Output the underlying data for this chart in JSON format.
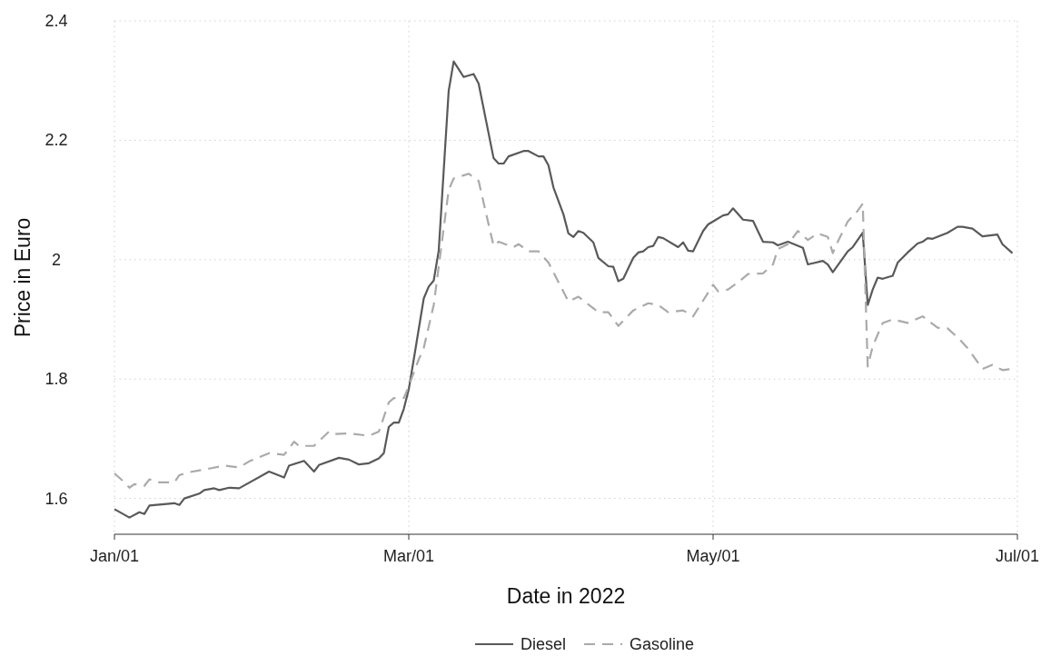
{
  "chart_data": {
    "type": "line",
    "xlabel": "Date in 2022",
    "ylabel": "Price in Euro",
    "xlim": [
      "2022-01-01",
      "2022-07-01"
    ],
    "xticks": [
      {
        "value": "2022-01-01",
        "label": "Jan/01"
      },
      {
        "value": "2022-03-01",
        "label": "Mar/01"
      },
      {
        "value": "2022-05-01",
        "label": "May/01"
      },
      {
        "value": "2022-07-01",
        "label": "Jul/01"
      }
    ],
    "ylim": [
      1.54,
      2.4
    ],
    "yticks": [
      1.6,
      1.8,
      {
        "value": 2,
        "label": "2"
      },
      2.2,
      2.4
    ],
    "grid": true,
    "legend": "bottom",
    "series": [
      {
        "name": "Diesel",
        "color": "#595959",
        "line_style": "solid",
        "x": [
          "2022-01-01",
          "2022-01-04",
          "2022-01-06",
          "2022-01-07",
          "2022-01-08",
          "2022-01-13",
          "2022-01-14",
          "2022-01-15",
          "2022-01-18",
          "2022-01-19",
          "2022-01-21",
          "2022-01-22",
          "2022-01-24",
          "2022-01-26",
          "2022-02-01",
          "2022-02-04",
          "2022-02-05",
          "2022-02-08",
          "2022-02-10",
          "2022-02-11",
          "2022-02-15",
          "2022-02-17",
          "2022-02-19",
          "2022-02-21",
          "2022-02-23",
          "2022-02-24",
          "2022-02-25",
          "2022-02-26",
          "2022-02-27",
          "2022-02-28",
          "2022-03-01",
          "2022-03-02",
          "2022-03-04",
          "2022-03-05",
          "2022-03-06",
          "2022-03-07",
          "2022-03-09",
          "2022-03-10",
          "2022-03-12",
          "2022-03-14",
          "2022-03-15",
          "2022-03-18",
          "2022-03-19",
          "2022-03-20",
          "2022-03-21",
          "2022-03-24",
          "2022-03-25",
          "2022-03-27",
          "2022-03-28",
          "2022-03-29",
          "2022-03-30",
          "2022-04-01",
          "2022-04-02",
          "2022-04-03",
          "2022-04-04",
          "2022-04-05",
          "2022-04-07",
          "2022-04-08",
          "2022-04-10",
          "2022-04-11",
          "2022-04-12",
          "2022-04-13",
          "2022-04-15",
          "2022-04-16",
          "2022-04-17",
          "2022-04-18",
          "2022-04-19",
          "2022-04-20",
          "2022-04-21",
          "2022-04-24",
          "2022-04-25",
          "2022-04-26",
          "2022-04-27",
          "2022-04-29",
          "2022-04-30",
          "2022-05-01",
          "2022-05-03",
          "2022-05-04",
          "2022-05-05",
          "2022-05-07",
          "2022-05-09",
          "2022-05-11",
          "2022-05-13",
          "2022-05-14",
          "2022-05-16",
          "2022-05-19",
          "2022-05-20",
          "2022-05-21",
          "2022-05-23",
          "2022-05-24",
          "2022-05-25",
          "2022-05-28",
          "2022-05-29",
          "2022-05-31",
          "2022-06-01",
          "2022-06-02",
          "2022-06-03",
          "2022-06-04",
          "2022-06-06",
          "2022-06-07",
          "2022-06-09",
          "2022-06-11",
          "2022-06-12",
          "2022-06-13",
          "2022-06-14",
          "2022-06-17",
          "2022-06-19",
          "2022-06-20",
          "2022-06-22",
          "2022-06-24",
          "2022-06-27",
          "2022-06-28",
          "2022-06-30"
        ],
        "values": [
          1.582,
          1.568,
          1.577,
          1.574,
          1.588,
          1.592,
          1.589,
          1.6,
          1.608,
          1.614,
          1.617,
          1.614,
          1.618,
          1.617,
          1.645,
          1.635,
          1.655,
          1.663,
          1.645,
          1.656,
          1.668,
          1.665,
          1.657,
          1.659,
          1.667,
          1.676,
          1.72,
          1.727,
          1.727,
          1.75,
          1.783,
          1.833,
          1.935,
          1.955,
          1.965,
          2.015,
          2.283,
          2.332,
          2.306,
          2.311,
          2.295,
          2.17,
          2.161,
          2.161,
          2.173,
          2.182,
          2.182,
          2.173,
          2.173,
          2.158,
          2.121,
          2.076,
          2.044,
          2.038,
          2.048,
          2.045,
          2.029,
          2.003,
          1.989,
          1.988,
          1.964,
          1.968,
          2.003,
          2.012,
          2.014,
          2.021,
          2.023,
          2.038,
          2.036,
          2.021,
          2.029,
          2.015,
          2.014,
          2.048,
          2.059,
          2.064,
          2.074,
          2.076,
          2.086,
          2.067,
          2.065,
          2.03,
          2.029,
          2.024,
          2.03,
          2.02,
          1.992,
          1.994,
          1.998,
          1.992,
          1.979,
          2.014,
          2.021,
          2.045,
          1.924,
          1.95,
          1.97,
          1.968,
          1.973,
          1.995,
          2.012,
          2.027,
          2.03,
          2.036,
          2.035,
          2.045,
          2.055,
          2.055,
          2.052,
          2.039,
          2.042,
          2.026,
          2.011
        ]
      },
      {
        "name": "Gasoline",
        "color": "#aaaaaa",
        "line_style": "dashed",
        "x": [
          "2022-01-01",
          "2022-01-03",
          "2022-01-04",
          "2022-01-05",
          "2022-01-07",
          "2022-01-08",
          "2022-01-10",
          "2022-01-13",
          "2022-01-14",
          "2022-01-16",
          "2022-01-20",
          "2022-01-23",
          "2022-01-26",
          "2022-01-28",
          "2022-02-01",
          "2022-02-04",
          "2022-02-06",
          "2022-02-07",
          "2022-02-10",
          "2022-02-13",
          "2022-02-14",
          "2022-02-17",
          "2022-02-21",
          "2022-02-23",
          "2022-02-25",
          "2022-02-26",
          "2022-02-28",
          "2022-03-01",
          "2022-03-03",
          "2022-03-04",
          "2022-03-06",
          "2022-03-09",
          "2022-03-10",
          "2022-03-13",
          "2022-03-15",
          "2022-03-18",
          "2022-03-19",
          "2022-03-22",
          "2022-03-23",
          "2022-03-25",
          "2022-03-27",
          "2022-03-29",
          "2022-04-02",
          "2022-04-04",
          "2022-04-08",
          "2022-04-10",
          "2022-04-12",
          "2022-04-15",
          "2022-04-18",
          "2022-04-20",
          "2022-04-22",
          "2022-04-25",
          "2022-04-27",
          "2022-05-01",
          "2022-05-02",
          "2022-05-04",
          "2022-05-06",
          "2022-05-08",
          "2022-05-11",
          "2022-05-13",
          "2022-05-14",
          "2022-05-16",
          "2022-05-18",
          "2022-05-20",
          "2022-05-22",
          "2022-05-24",
          "2022-05-25",
          "2022-05-26",
          "2022-05-28",
          "2022-05-30",
          "2022-05-31",
          "2022-06-01",
          "2022-06-02",
          "2022-06-04",
          "2022-06-06",
          "2022-06-09",
          "2022-06-12",
          "2022-06-15",
          "2022-06-17",
          "2022-06-19",
          "2022-06-21",
          "2022-06-24",
          "2022-06-26",
          "2022-06-28",
          "2022-06-30"
        ],
        "values": [
          1.642,
          1.627,
          1.618,
          1.624,
          1.621,
          1.632,
          1.627,
          1.627,
          1.639,
          1.644,
          1.65,
          1.655,
          1.652,
          1.662,
          1.676,
          1.673,
          1.695,
          1.688,
          1.688,
          1.712,
          1.708,
          1.709,
          1.705,
          1.712,
          1.761,
          1.768,
          1.768,
          1.788,
          1.833,
          1.852,
          1.924,
          2.117,
          2.136,
          2.144,
          2.132,
          2.023,
          2.03,
          2.021,
          2.026,
          2.014,
          2.014,
          1.995,
          1.93,
          1.938,
          1.912,
          1.912,
          1.889,
          1.915,
          1.927,
          1.924,
          1.912,
          1.915,
          1.905,
          1.958,
          1.947,
          1.95,
          1.962,
          1.976,
          1.977,
          1.992,
          2.018,
          2.026,
          2.048,
          2.033,
          2.044,
          2.038,
          2.011,
          2.03,
          2.064,
          2.082,
          2.094,
          1.821,
          1.855,
          1.894,
          1.9,
          1.894,
          1.905,
          1.886,
          1.885,
          1.87,
          1.852,
          1.817,
          1.824,
          1.815,
          1.817
        ]
      }
    ]
  }
}
